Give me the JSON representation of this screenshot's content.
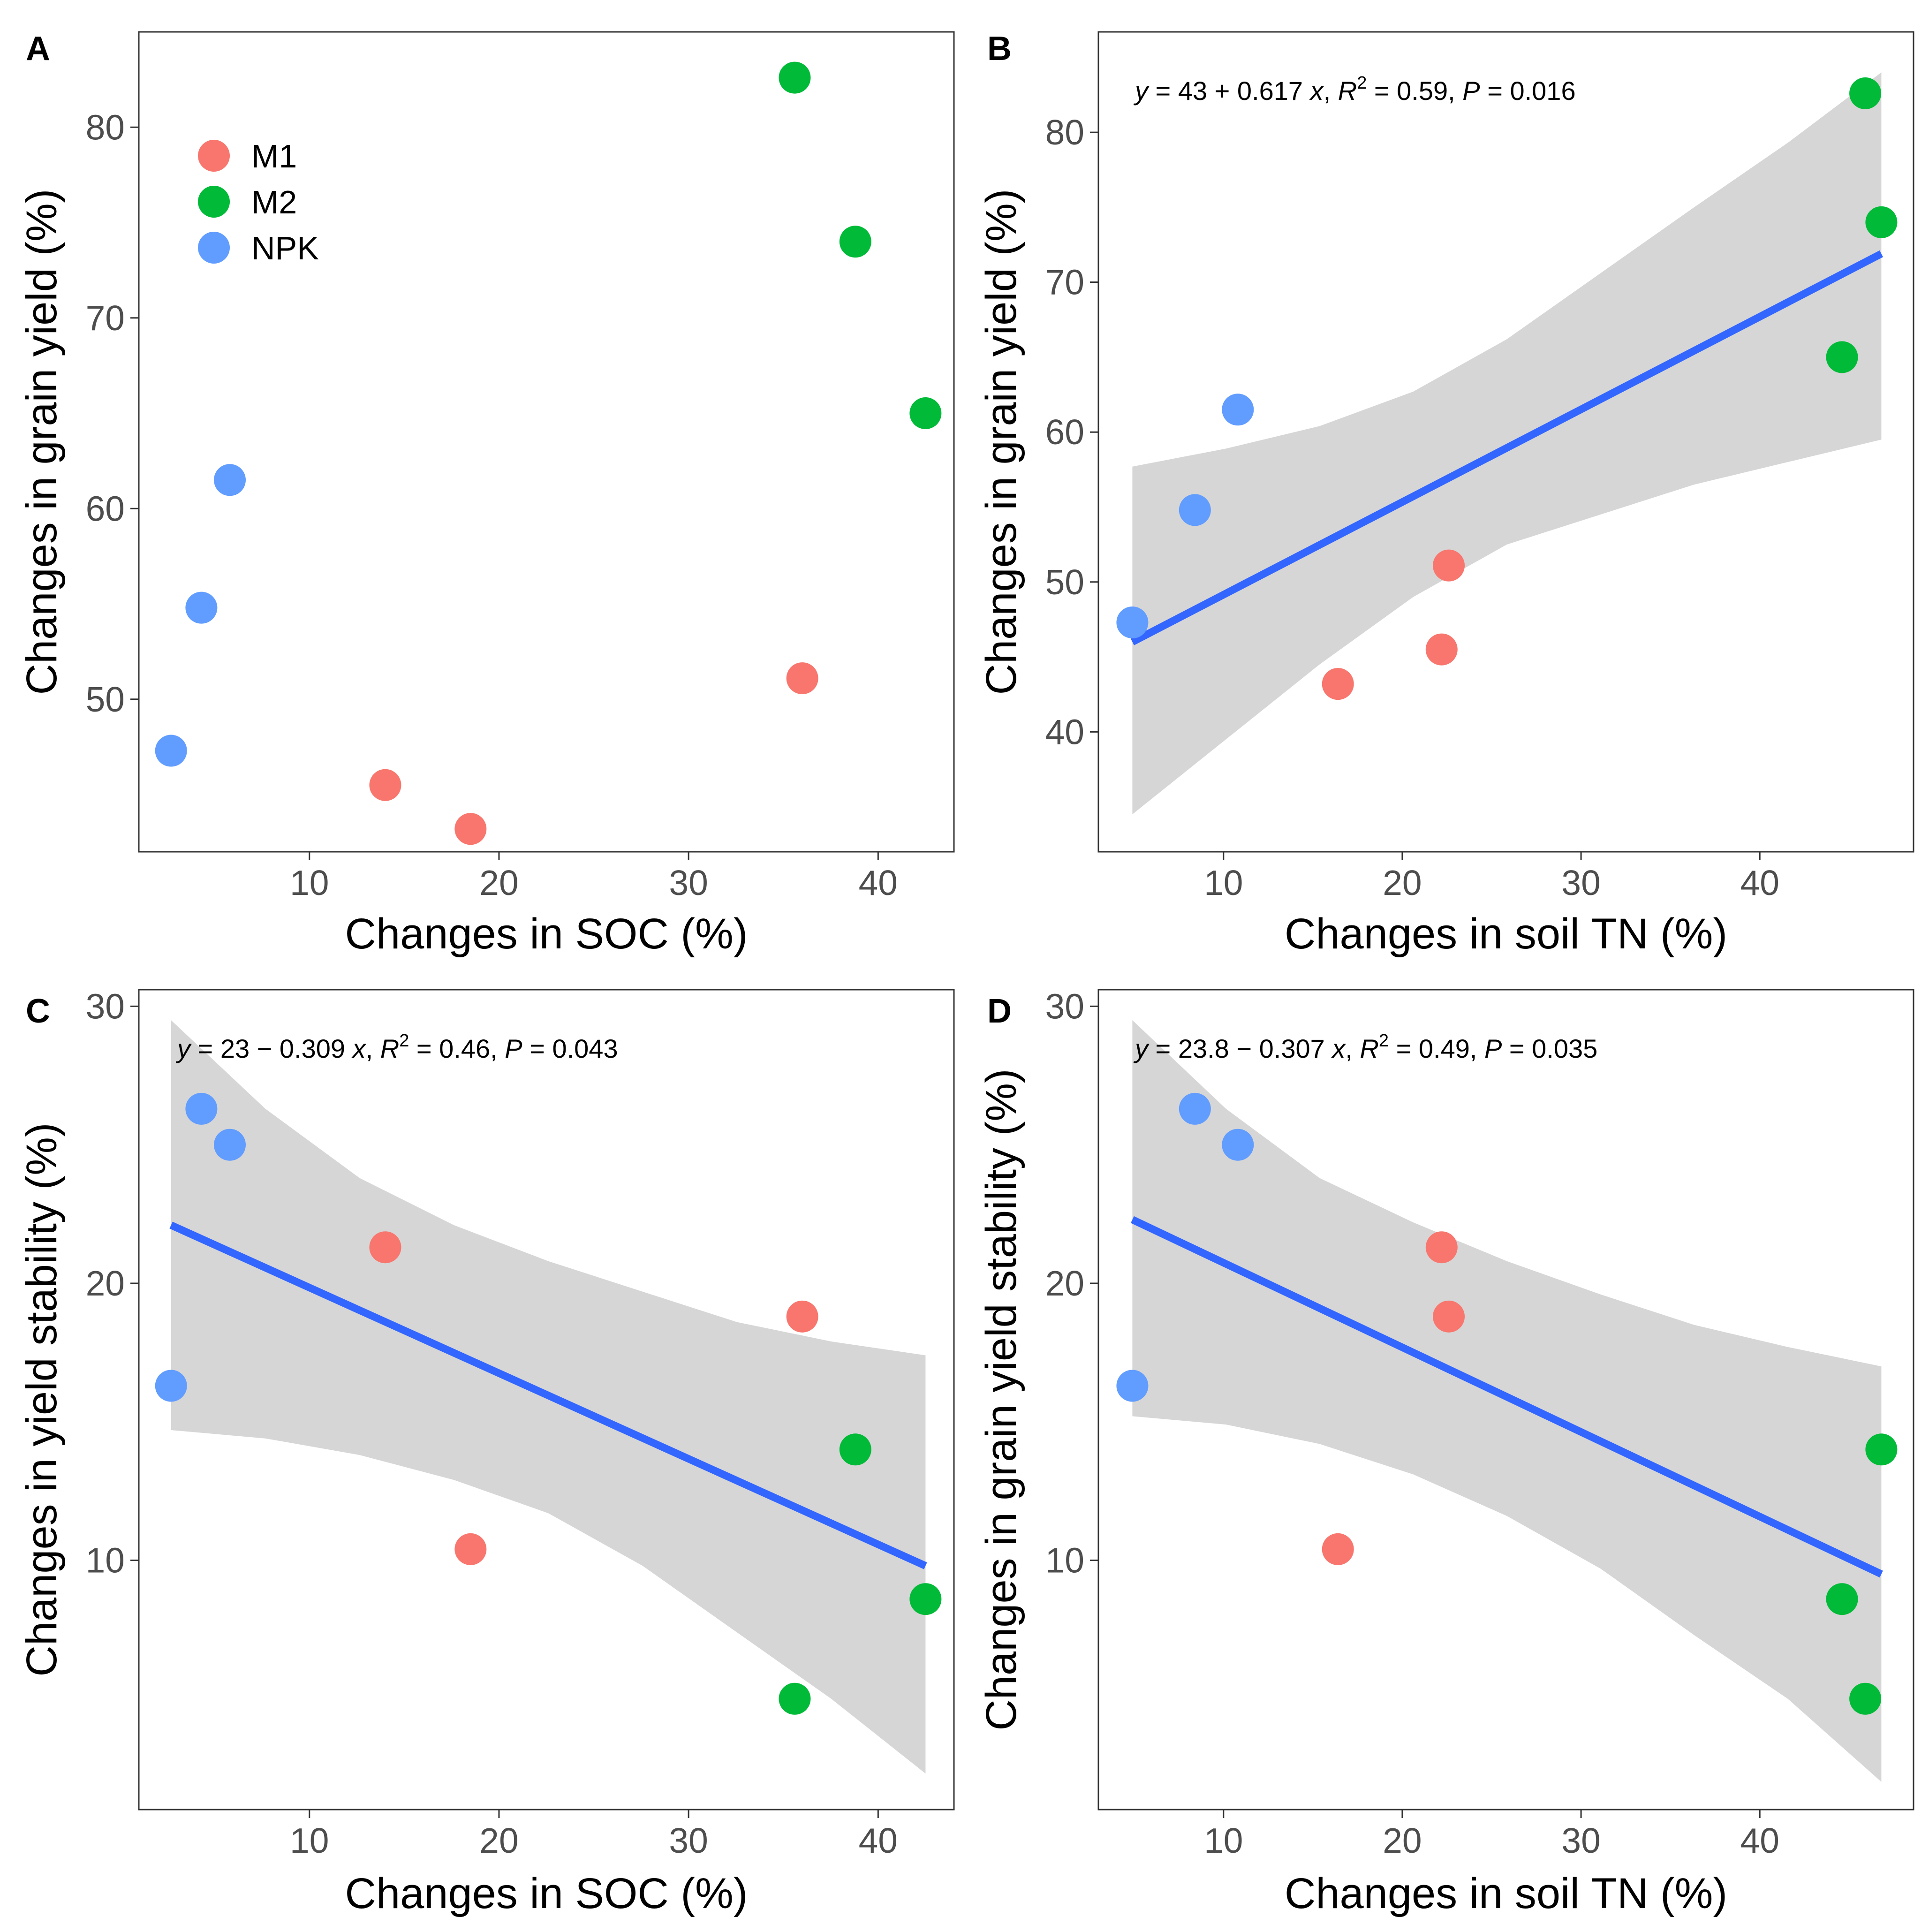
{
  "colors": {
    "M1": "#F8766D",
    "M2": "#00BA38",
    "NPK": "#619CFF",
    "fit_line": "#3366FF",
    "ci_band": "#999999"
  },
  "chart_data": [
    {
      "id": "A",
      "type": "scatter",
      "panel_label": "A",
      "xlabel": "Changes in SOC (%)",
      "ylabel": "Changes in grain yield (%)",
      "xlim": [
        1.0,
        44.0
      ],
      "ylim": [
        42.0,
        85.0
      ],
      "xticks": [
        10,
        20,
        30,
        40
      ],
      "yticks": [
        50,
        60,
        70,
        80
      ],
      "legend": {
        "position": "top-left",
        "entries": [
          "M1",
          "M2",
          "NPK"
        ]
      },
      "points": [
        {
          "group": "M1",
          "x": 14.0,
          "y": 45.5
        },
        {
          "group": "M1",
          "x": 18.5,
          "y": 43.2
        },
        {
          "group": "M1",
          "x": 36.0,
          "y": 51.1
        },
        {
          "group": "M2",
          "x": 35.6,
          "y": 82.6
        },
        {
          "group": "M2",
          "x": 38.8,
          "y": 74.0
        },
        {
          "group": "M2",
          "x": 42.5,
          "y": 65.0
        },
        {
          "group": "NPK",
          "x": 2.7,
          "y": 47.3
        },
        {
          "group": "NPK",
          "x": 4.3,
          "y": 54.8
        },
        {
          "group": "NPK",
          "x": 5.8,
          "y": 61.5
        }
      ]
    },
    {
      "id": "B",
      "type": "scatter",
      "panel_label": "B",
      "xlabel": "Changes in soil TN (%)",
      "ylabel": "Changes in grain yield (%)",
      "xlim": [
        3.0,
        48.6
      ],
      "ylim": [
        32.0,
        86.7
      ],
      "xticks": [
        10,
        20,
        30,
        40
      ],
      "yticks": [
        40,
        50,
        60,
        70,
        80
      ],
      "equation": {
        "prefix": "y",
        "body": " = 43 + 0.617 ",
        "x": "x",
        "r_label": "R",
        "r_sup": "2",
        "r_value": " = 0.59, ",
        "p_label": "P",
        "p_value": " = 0.016"
      },
      "fit": {
        "x": [
          4.9,
          46.8
        ],
        "y": [
          46.0,
          71.9
        ],
        "ci_upper": [
          57.7,
          58.9,
          60.4,
          62.7,
          66.2,
          70.6,
          75.0,
          79.3,
          84.0
        ],
        "ci_lower": [
          34.5,
          39.5,
          44.5,
          49.0,
          52.5,
          54.5,
          56.5,
          58.0,
          59.5
        ]
      },
      "points": [
        {
          "group": "M1",
          "x": 16.4,
          "y": 43.2
        },
        {
          "group": "M1",
          "x": 22.2,
          "y": 45.5
        },
        {
          "group": "M1",
          "x": 22.6,
          "y": 51.1
        },
        {
          "group": "M2",
          "x": 45.9,
          "y": 82.6
        },
        {
          "group": "M2",
          "x": 46.8,
          "y": 74.0
        },
        {
          "group": "M2",
          "x": 44.6,
          "y": 65.0
        },
        {
          "group": "NPK",
          "x": 4.9,
          "y": 47.3
        },
        {
          "group": "NPK",
          "x": 8.4,
          "y": 54.8
        },
        {
          "group": "NPK",
          "x": 10.8,
          "y": 61.5
        }
      ]
    },
    {
      "id": "C",
      "type": "scatter",
      "panel_label": "C",
      "xlabel": "Changes in SOC (%)",
      "ylabel": "Changes in yield stability (%)",
      "xlim": [
        1.0,
        44.0
      ],
      "ylim": [
        1.0,
        30.6
      ],
      "xticks": [
        10,
        20,
        30,
        40
      ],
      "yticks": [
        10,
        20,
        30
      ],
      "equation": {
        "prefix": "y",
        "body": " = 23 − 0.309 ",
        "x": "x",
        "r_label": "R",
        "r_sup": "2",
        "r_value": " = 0.46, ",
        "p_label": "P",
        "p_value": " = 0.043"
      },
      "fit": {
        "x": [
          2.7,
          42.5
        ],
        "y": [
          22.1,
          9.8
        ],
        "ci_upper": [
          29.5,
          26.3,
          23.8,
          22.1,
          20.8,
          19.7,
          18.6,
          17.9,
          17.4
        ],
        "ci_lower": [
          14.7,
          14.4,
          13.8,
          12.9,
          11.7,
          9.8,
          7.4,
          5.0,
          2.3
        ]
      },
      "points": [
        {
          "group": "M1",
          "x": 14.0,
          "y": 21.3
        },
        {
          "group": "M1",
          "x": 18.5,
          "y": 10.4
        },
        {
          "group": "M1",
          "x": 36.0,
          "y": 18.8
        },
        {
          "group": "M2",
          "x": 35.6,
          "y": 5.0
        },
        {
          "group": "M2",
          "x": 38.8,
          "y": 14.0
        },
        {
          "group": "M2",
          "x": 42.5,
          "y": 8.6
        },
        {
          "group": "NPK",
          "x": 2.7,
          "y": 16.3
        },
        {
          "group": "NPK",
          "x": 4.3,
          "y": 26.3
        },
        {
          "group": "NPK",
          "x": 5.8,
          "y": 25.0
        }
      ]
    },
    {
      "id": "D",
      "type": "scatter",
      "panel_label": "D",
      "xlabel": "Changes in soil TN (%)",
      "ylabel": "Changes in grain yield stability (%)",
      "xlim": [
        3.0,
        48.6
      ],
      "ylim": [
        1.0,
        30.6
      ],
      "xticks": [
        10,
        20,
        30,
        40
      ],
      "yticks": [
        10,
        20,
        30
      ],
      "equation": {
        "prefix": "y",
        "body": " = 23.8 − 0.307 ",
        "x": "x",
        "r_label": "R",
        "r_sup": "2",
        "r_value": " = 0.49, ",
        "p_label": "P",
        "p_value": " = 0.035"
      },
      "fit": {
        "x": [
          4.9,
          46.8
        ],
        "y": [
          22.3,
          9.5
        ],
        "ci_upper": [
          29.5,
          26.3,
          23.8,
          22.2,
          20.8,
          19.6,
          18.5,
          17.7,
          17.0
        ],
        "ci_lower": [
          15.2,
          14.9,
          14.2,
          13.1,
          11.6,
          9.7,
          7.3,
          5.0,
          2.0
        ]
      },
      "points": [
        {
          "group": "M1",
          "x": 16.4,
          "y": 10.4
        },
        {
          "group": "M1",
          "x": 22.2,
          "y": 21.3
        },
        {
          "group": "M1",
          "x": 22.6,
          "y": 18.8
        },
        {
          "group": "M2",
          "x": 45.9,
          "y": 5.0
        },
        {
          "group": "M2",
          "x": 46.8,
          "y": 14.0
        },
        {
          "group": "M2",
          "x": 44.6,
          "y": 8.6
        },
        {
          "group": "NPK",
          "x": 4.9,
          "y": 16.3
        },
        {
          "group": "NPK",
          "x": 8.4,
          "y": 26.3
        },
        {
          "group": "NPK",
          "x": 10.8,
          "y": 25.0
        }
      ]
    }
  ]
}
